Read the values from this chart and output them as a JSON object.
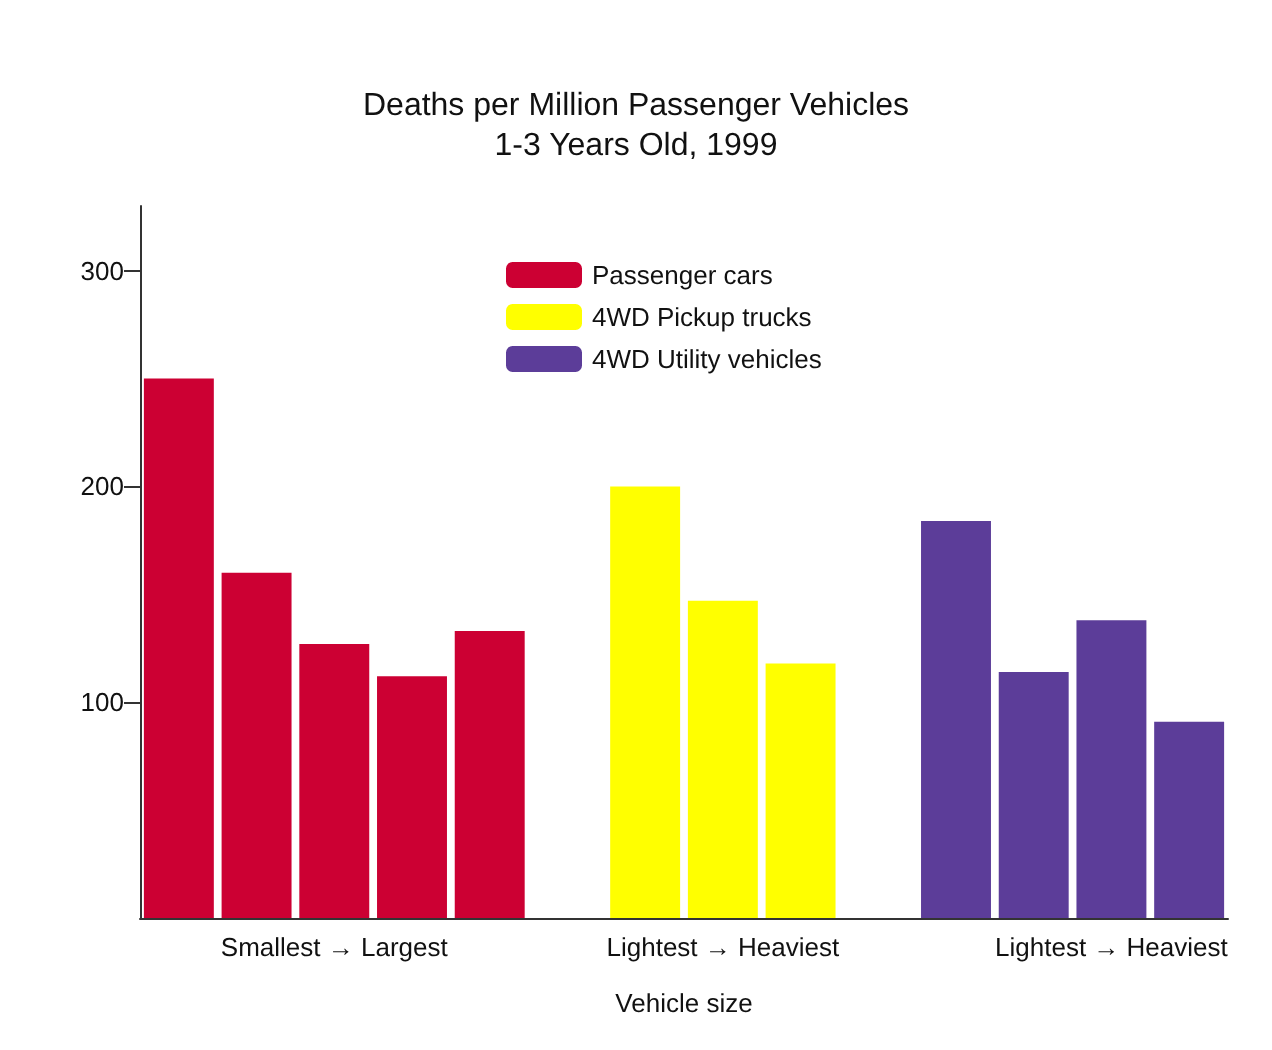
{
  "chart_data": {
    "type": "bar",
    "title": "Deaths per Million Passenger Vehicles\n1-3 Years Old, 1999",
    "xlabel": "Vehicle size",
    "categories": [
      null,
      null,
      "Smallest → Largest",
      null,
      null,
      null,
      null,
      "Lightest → Heaviest",
      null,
      null,
      null,
      null,
      "Lightest → Heaviest",
      null
    ],
    "series": [
      {
        "name": "Passenger cars",
        "color": "#cc0033",
        "values": [
          250,
          160,
          127,
          112,
          133,
          null,
          null,
          null,
          null,
          null,
          null,
          null,
          null,
          null
        ]
      },
      {
        "name": "4WD Pickup trucks",
        "color": "#ffff00",
        "values": [
          null,
          null,
          null,
          null,
          null,
          null,
          200,
          147,
          118,
          null,
          null,
          null,
          null,
          null
        ]
      },
      {
        "name": "4WD Utility vehicles",
        "color": "#5c3d99",
        "values": [
          null,
          null,
          null,
          null,
          null,
          null,
          null,
          null,
          null,
          null,
          184,
          114,
          138,
          91
        ]
      }
    ],
    "ylim": [
      0,
      330
    ],
    "yticks": [
      100,
      200,
      300
    ],
    "grid": false,
    "legend": "top"
  }
}
